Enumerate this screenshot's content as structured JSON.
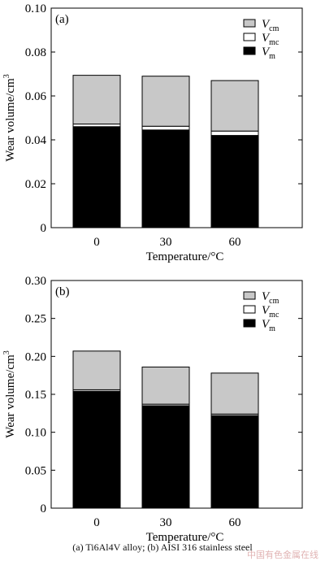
{
  "chart_data": [
    {
      "type": "bar",
      "stacked": true,
      "panel_label": "(a)",
      "categories": [
        "0",
        "30",
        "60"
      ],
      "xlabel": "Temperature/°C",
      "ylabel": "Wear volume/cm",
      "ylabel_sup": "3",
      "ylim": [
        0,
        0.1
      ],
      "yticks": [
        "0",
        "0.02",
        "0.04",
        "0.06",
        "0.08",
        "0.10"
      ],
      "ytick_values": [
        0,
        0.02,
        0.04,
        0.06,
        0.08,
        0.1
      ],
      "legend_position": "top-right",
      "series": [
        {
          "name": "V",
          "sub": "m",
          "color": "#000000",
          "values": [
            0.046,
            0.0445,
            0.042
          ]
        },
        {
          "name": "V",
          "sub": "mc",
          "color": "#ffffff",
          "values": [
            0.0012,
            0.0017,
            0.002
          ]
        },
        {
          "name": "V",
          "sub": "cm",
          "color": "#c8c8c8",
          "values": [
            0.0222,
            0.0228,
            0.023
          ]
        }
      ],
      "legend_order": [
        2,
        1,
        0
      ]
    },
    {
      "type": "bar",
      "stacked": true,
      "panel_label": "(b)",
      "categories": [
        "0",
        "30",
        "60"
      ],
      "xlabel": "Temperature/°C",
      "ylabel": "Wear volume/cm",
      "ylabel_sup": "3",
      "ylim": [
        0,
        0.3
      ],
      "yticks": [
        "0",
        "0.05",
        "0.10",
        "0.15",
        "0.20",
        "0.25",
        "0.30"
      ],
      "ytick_values": [
        0,
        0.05,
        0.1,
        0.15,
        0.2,
        0.25,
        0.3
      ],
      "legend_position": "top-right",
      "series": [
        {
          "name": "V",
          "sub": "m",
          "color": "#000000",
          "values": [
            0.154,
            0.135,
            0.122
          ]
        },
        {
          "name": "V",
          "sub": "mc",
          "color": "#ffffff",
          "values": [
            0.002,
            0.002,
            0.002
          ]
        },
        {
          "name": "V",
          "sub": "cm",
          "color": "#c8c8c8",
          "values": [
            0.051,
            0.049,
            0.054
          ]
        }
      ],
      "legend_order": [
        2,
        1,
        0
      ]
    }
  ],
  "caption": "(a) Ti6Al4V alloy; (b) AISI 316 stainless steel",
  "watermark": "中国有色金属在线"
}
